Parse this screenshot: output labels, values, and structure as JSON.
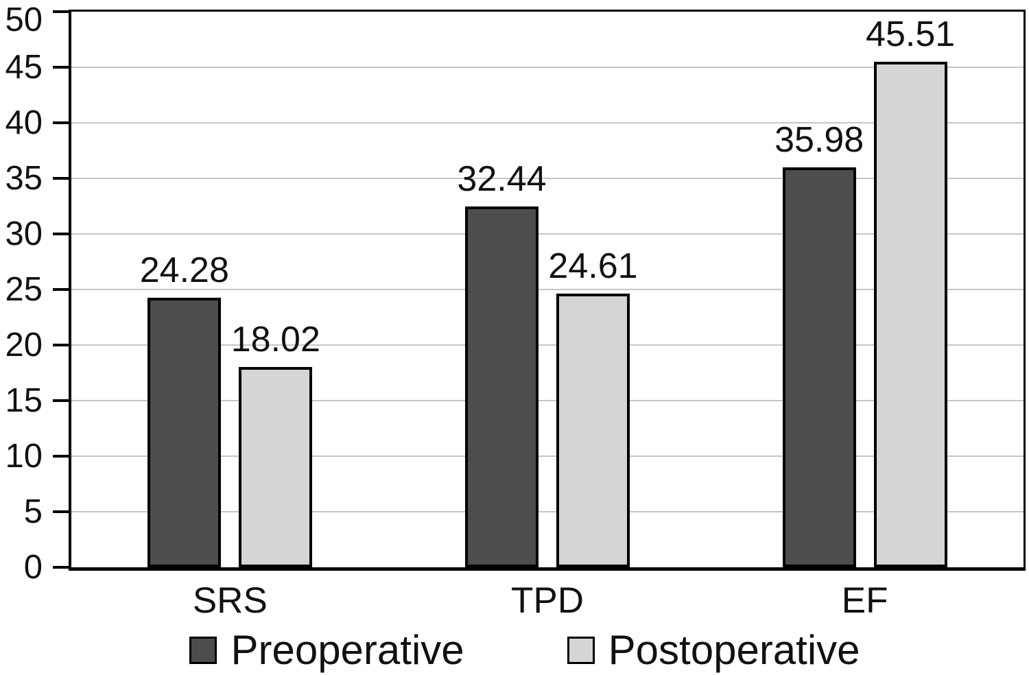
{
  "chart_data": {
    "type": "bar",
    "title": "",
    "xlabel": "",
    "ylabel": "",
    "categories": [
      "SRS",
      "TPD",
      "EF"
    ],
    "series": [
      {
        "name": "Preoperative",
        "values": [
          24.28,
          32.44,
          35.98
        ],
        "color": "#4d4d4d"
      },
      {
        "name": "Postoperative",
        "values": [
          18.02,
          24.61,
          45.51
        ],
        "color": "#d5d5d5"
      }
    ],
    "value_labels": [
      "24.28",
      "18.02",
      "32.44",
      "24.61",
      "35.98",
      "45.51"
    ],
    "value_label_decimals": 2,
    "ylim": [
      0,
      50
    ],
    "ytick_step": 5,
    "ytick_labels": [
      "0",
      "5",
      "10",
      "15",
      "20",
      "25",
      "30",
      "35",
      "40",
      "45",
      "50"
    ],
    "grid": true,
    "legend_position": "bottom",
    "colors": {
      "bar_border": "#000000",
      "axis": "#000000",
      "gridline": "#c5c5c5",
      "text": "#111111",
      "background": "#ffffff"
    }
  }
}
